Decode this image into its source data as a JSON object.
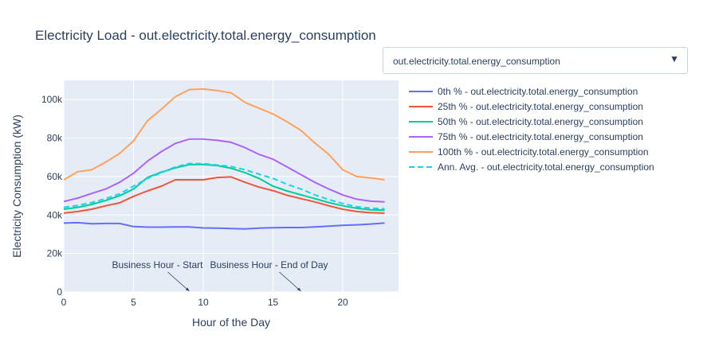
{
  "title": "Electricity Load - out.electricity.total.energy_consumption",
  "dropdown": {
    "selected": "out.electricity.total.energy_consumption",
    "arrow_glyph": "▼"
  },
  "chart_data": {
    "type": "line",
    "xlabel": "Hour of the Day",
    "ylabel": "Electricity Consumption (kW)",
    "xlim": [
      0,
      24
    ],
    "ylim": [
      0,
      110000
    ],
    "x_ticks": [
      0,
      5,
      10,
      15,
      20
    ],
    "x_tick_labels": [
      "0",
      "5",
      "10",
      "15",
      "20"
    ],
    "y_ticks": [
      0,
      20000,
      40000,
      60000,
      80000,
      100000
    ],
    "y_tick_labels": [
      "0",
      "20k",
      "40k",
      "60k",
      "80k",
      "100k"
    ],
    "grid": true,
    "legend_position": "right",
    "x": [
      0,
      1,
      2,
      3,
      4,
      5,
      6,
      7,
      8,
      9,
      10,
      11,
      12,
      13,
      14,
      15,
      16,
      17,
      18,
      19,
      20,
      21,
      22,
      23
    ],
    "series": [
      {
        "name": "0th % - out.electricity.total.energy_consumption",
        "color": "#636efa",
        "dash": false,
        "values": [
          35800,
          36000,
          35500,
          35600,
          35600,
          34000,
          33700,
          33700,
          33800,
          33800,
          33300,
          33200,
          33000,
          32800,
          33200,
          33400,
          33500,
          33500,
          33800,
          34200,
          34600,
          34900,
          35300,
          35800
        ]
      },
      {
        "name": "25th % - out.electricity.total.energy_consumption",
        "color": "#ef553b",
        "dash": false,
        "values": [
          41000,
          41800,
          43000,
          44800,
          46300,
          49700,
          52500,
          55000,
          58300,
          58300,
          58300,
          59500,
          59800,
          57000,
          54500,
          52700,
          50300,
          48500,
          46800,
          44800,
          43000,
          41800,
          41200,
          41000
        ]
      },
      {
        "name": "50th % - out.electricity.total.energy_consumption",
        "color": "#00cc96",
        "dash": false,
        "values": [
          43000,
          44000,
          45500,
          47500,
          50000,
          53500,
          59500,
          62300,
          64500,
          66200,
          66300,
          65700,
          64300,
          62000,
          59000,
          55000,
          52500,
          50500,
          48500,
          46500,
          44800,
          43500,
          42700,
          42500
        ]
      },
      {
        "name": "75th % - out.electricity.total.energy_consumption",
        "color": "#ab63fa",
        "dash": false,
        "values": [
          47000,
          48800,
          51200,
          53500,
          57000,
          61700,
          68000,
          73000,
          77200,
          79500,
          79500,
          78800,
          77800,
          75000,
          71500,
          69000,
          65000,
          61000,
          57000,
          53500,
          50400,
          48200,
          47200,
          46800
        ]
      },
      {
        "name": "100th % - out.electricity.total.energy_consumption",
        "color": "#ffa15a",
        "dash": false,
        "values": [
          58300,
          62500,
          63500,
          67500,
          72000,
          78500,
          89000,
          95000,
          101500,
          105200,
          105500,
          104700,
          103500,
          98500,
          95500,
          92500,
          88500,
          84000,
          77500,
          71500,
          63500,
          60000,
          59300,
          58300
        ]
      },
      {
        "name": "Ann. Avg. - out.electricity.total.energy_consumption",
        "color": "#19d3f3",
        "dash": true,
        "values": [
          44000,
          45000,
          46500,
          48500,
          51000,
          55000,
          59000,
          62000,
          65000,
          66800,
          66700,
          66000,
          65200,
          63500,
          61200,
          59000,
          56000,
          53500,
          50500,
          48000,
          46000,
          44300,
          43600,
          43200
        ]
      }
    ],
    "annotations": [
      {
        "text": "Business Hour - Start",
        "x": 9,
        "y": 0
      },
      {
        "text": "Business Hour - End of Day",
        "x": 17,
        "y": 0
      }
    ]
  }
}
